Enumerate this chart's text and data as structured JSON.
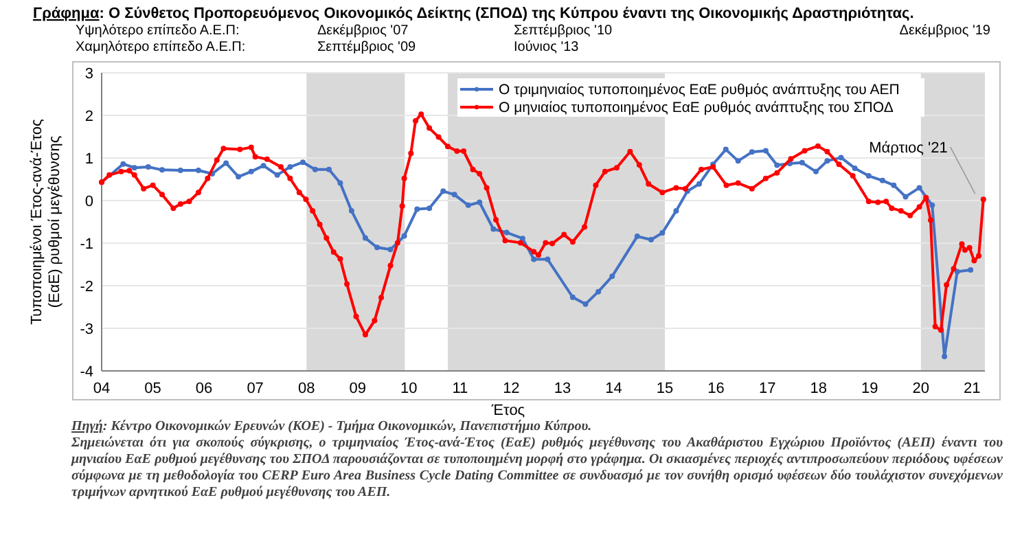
{
  "chart_data": {
    "type": "line",
    "title": "Γράφημα: Ο Σύνθετος Προπορευόμενος Οικονομικός Δείκτης (ΣΠΟΔ) της Κύπρου έναντι της Οικονομικής  Δραστηριότητας.",
    "xlabel": "Έτος",
    "ylabel": "Τυποποιημένοι Έτος-ανά-Έτος (ΕαΕ) ρυθμοί μεγέθυνσης",
    "annotations": [
      "Υψηλότερο επίπεδο Α.Ε.Π:",
      "Δεκέμβριος '07",
      "Σεπτέμβριος '10",
      "Δεκέμβριος '19",
      "Χαμηλότερο επίπεδο Α.Ε.Π:",
      "Σεπτέμβριος '09",
      "Ιούνιος '13",
      {
        "text": "Μάρτιος '21",
        "x": 2021.22,
        "y": 0.03
      },
      "Πηγή: Κέντρο Οικονομικών Ερευνών (ΚΟΕ) - Τμήμα Οικονομικών, Πανεπιστήμιο Κύπρου.",
      "Σημειώνεται ότι για σκοπούς σύγκρισης, ο τριμηνιαίος Έτος-ανά-Έτος (ΕαΕ) ρυθμός μεγέθυνσης του Ακαθάριστου Εγχώριου Προϊόντος (ΑΕΠ) έναντι του μηνιαίου ΕαΕ ρυθμού μεγέθυνσης του ΣΠΟΔ παρουσιάζονται σε τυποποιημένη μορφή στο γράφημα. Οι σκιασμένες περιοχές αντιπροσωπεύουν περιόδους υφέσεων σύμφωνα με τη μεθοδολογία του CERP Euro Area Business Cycle Dating Committee σε συνδυασμό με τον συνήθη ορισμό υφέσεων δύο τουλάχιστον συνεχόμενων τριμήνων αρνητικού ΕαΕ ρυθμού μεγέθυνσης του ΑΕΠ."
    ],
    "xlim": [
      2004,
      2021.25
    ],
    "xticks": [
      {
        "value": 2004,
        "label": "04"
      },
      {
        "value": 2005,
        "label": "05"
      },
      {
        "value": 2006,
        "label": "06"
      },
      {
        "value": 2007,
        "label": "07"
      },
      {
        "value": 2008,
        "label": "08"
      },
      {
        "value": 2009,
        "label": "09"
      },
      {
        "value": 2010,
        "label": "10"
      },
      {
        "value": 2011,
        "label": "11"
      },
      {
        "value": 2012,
        "label": "12"
      },
      {
        "value": 2013,
        "label": "13"
      },
      {
        "value": 2014,
        "label": "14"
      },
      {
        "value": 2015,
        "label": "15"
      },
      {
        "value": 2016,
        "label": "16"
      },
      {
        "value": 2017,
        "label": "17"
      },
      {
        "value": 2018,
        "label": "18"
      },
      {
        "value": 2019,
        "label": "19"
      },
      {
        "value": 2020,
        "label": "20"
      },
      {
        "value": 2021,
        "label": "21"
      }
    ],
    "ylim": [
      -4,
      3
    ],
    "yticks": [
      -4,
      -3,
      -2,
      -1,
      0,
      1,
      2,
      3
    ],
    "grid": "y",
    "legend": "top right",
    "marker": "circle",
    "line_style": "solid",
    "bands": [
      {
        "axis": "x",
        "from": 2008,
        "to": 2009.92,
        "color": "#d9d9d9"
      },
      {
        "axis": "x",
        "from": 2010.76,
        "to": 2015,
        "color": "#d9d9d9"
      },
      {
        "axis": "x",
        "from": 2020,
        "to": 2021.25,
        "color": "#d9d9d9"
      }
    ],
    "series": [
      {
        "name": "Ο τριμηνιαίος τυποποιημένος ΕαΕ ρυθμός ανάπτυξης του ΑΕΠ",
        "color": "#4472c4",
        "x": [
          2004,
          2004.42,
          2004.64,
          2004.91,
          2005.18,
          2005.54,
          2005.89,
          2006.16,
          2006.43,
          2006.67,
          2006.92,
          2007.16,
          2007.43,
          2007.68,
          2007.93,
          2008.17,
          2008.44,
          2008.66,
          2008.88,
          2009.15,
          2009.38,
          2009.64,
          2009.91,
          2010.16,
          2010.4,
          2010.67,
          2010.89,
          2011.16,
          2011.38,
          2011.65,
          2011.91,
          2012.22,
          2012.44,
          2012.71,
          2013.2,
          2013.45,
          2013.7,
          2013.97,
          2014.46,
          2014.73,
          2014.95,
          2015.22,
          2015.44,
          2015.67,
          2015.94,
          2016.19,
          2016.43,
          2016.7,
          2016.97,
          2017.19,
          2017.44,
          2017.68,
          2017.95,
          2018.17,
          2018.44,
          2018.71,
          2018.98,
          2019.25,
          2019.47,
          2019.7,
          2019.97,
          2020.22,
          2020.46,
          2020.71,
          2020.97
        ],
        "values": [
          0.43,
          0.86,
          0.77,
          0.79,
          0.72,
          0.71,
          0.71,
          0.63,
          0.88,
          0.56,
          0.68,
          0.82,
          0.6,
          0.79,
          0.9,
          0.73,
          0.73,
          0.41,
          -0.24,
          -0.88,
          -1.1,
          -1.15,
          -0.83,
          -0.2,
          -0.18,
          0.22,
          0.14,
          -0.11,
          -0.04,
          -0.67,
          -0.75,
          -0.89,
          -1.38,
          -1.38,
          -2.27,
          -2.43,
          -2.14,
          -1.78,
          -0.84,
          -0.92,
          -0.76,
          -0.24,
          0.22,
          0.39,
          0.85,
          1.2,
          0.93,
          1.14,
          1.17,
          0.83,
          0.87,
          0.89,
          0.68,
          0.93,
          1.01,
          0.76,
          0.58,
          0.47,
          0.36,
          0.09,
          0.3,
          -0.11,
          -3.66,
          -1.67,
          -1.63
        ]
      },
      {
        "name": "Ο μηνιαίος τυποποιημένος ΕαΕ ρυθμός ανάπτυξης του ΣΠΟΔ",
        "color": "#ff0000",
        "x": [
          2004,
          2004.15,
          2004.38,
          2004.54,
          2004.64,
          2004.82,
          2005,
          2005.18,
          2005.4,
          2005.54,
          2005.71,
          2005.89,
          2006.07,
          2006.25,
          2006.38,
          2006.7,
          2006.92,
          2007,
          2007.23,
          2007.5,
          2007.68,
          2007.86,
          2007.99,
          2008.12,
          2008.26,
          2008.39,
          2008.53,
          2008.66,
          2008.79,
          2008.97,
          2009.15,
          2009.33,
          2009.46,
          2009.64,
          2009.78,
          2009.87,
          2009.91,
          2010.04,
          2010.13,
          2010.24,
          2010.4,
          2010.58,
          2010.76,
          2010.94,
          2011.07,
          2011.25,
          2011.38,
          2011.52,
          2011.7,
          2011.88,
          2012.18,
          2012.44,
          2012.53,
          2012.67,
          2012.8,
          2013.03,
          2013.2,
          2013.43,
          2013.65,
          2013.83,
          2014.06,
          2014.32,
          2014.5,
          2014.68,
          2014.95,
          2015.22,
          2015.4,
          2015.71,
          2015.94,
          2016.2,
          2016.43,
          2016.7,
          2016.97,
          2017.19,
          2017.46,
          2017.73,
          2017.99,
          2018.17,
          2018.4,
          2018.67,
          2018.98,
          2019.16,
          2019.32,
          2019.43,
          2019.61,
          2019.79,
          2019.97,
          2020.1,
          2020.19,
          2020.28,
          2020.39,
          2020.5,
          2020.64,
          2020.8,
          2020.86,
          2020.95,
          2021.04,
          2021.13,
          2021.22
        ],
        "values": [
          0.43,
          0.6,
          0.68,
          0.7,
          0.6,
          0.28,
          0.36,
          0.14,
          -0.18,
          -0.08,
          -0.02,
          0.19,
          0.52,
          0.95,
          1.22,
          1.2,
          1.25,
          1.03,
          0.97,
          0.79,
          0.52,
          0.19,
          0.03,
          -0.24,
          -0.56,
          -0.88,
          -1.21,
          -1.37,
          -1.96,
          -2.72,
          -3.15,
          -2.82,
          -2.28,
          -1.53,
          -0.99,
          -0.13,
          0.52,
          1.11,
          1.87,
          2.03,
          1.7,
          1.49,
          1.27,
          1.16,
          1.16,
          0.73,
          0.63,
          0.3,
          -0.45,
          -0.94,
          -0.99,
          -1.2,
          -1.28,
          -0.99,
          -1.01,
          -0.8,
          -0.97,
          -0.62,
          0.36,
          0.68,
          0.77,
          1.15,
          0.84,
          0.39,
          0.19,
          0.3,
          0.28,
          0.73,
          0.79,
          0.36,
          0.41,
          0.28,
          0.52,
          0.65,
          0.98,
          1.17,
          1.28,
          1.15,
          0.85,
          0.58,
          -0.02,
          -0.04,
          -0.02,
          -0.18,
          -0.24,
          -0.35,
          -0.15,
          0.07,
          -0.46,
          -2.96,
          -3.04,
          -1.98,
          -1.6,
          -1.02,
          -1.16,
          -1.11,
          -1.41,
          -1.3,
          0.03
        ]
      }
    ]
  }
}
